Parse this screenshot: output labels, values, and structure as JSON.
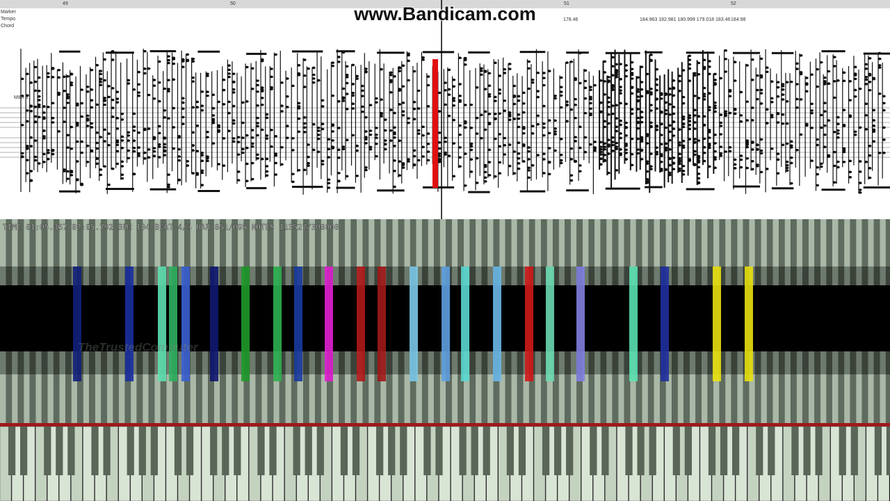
{
  "watermark": "www.Bandicam.com",
  "ruler": {
    "labels": [
      "49",
      "50",
      "51",
      "52"
    ]
  },
  "track_headers": [
    "Marker",
    "Tempo",
    "Chord"
  ],
  "tempo_marks": [
    "178.46",
    "184.963 182.981 180.999 179.018 183.46",
    "184.98"
  ],
  "score": {
    "track_label": "MIDI 3"
  },
  "status": "TIME 01:05.367/02:05.792 BPM 184 BEAT 4/4 BAR 051/095 NOTES 113527/300000",
  "credit": "TheTrustedComputer"
}
